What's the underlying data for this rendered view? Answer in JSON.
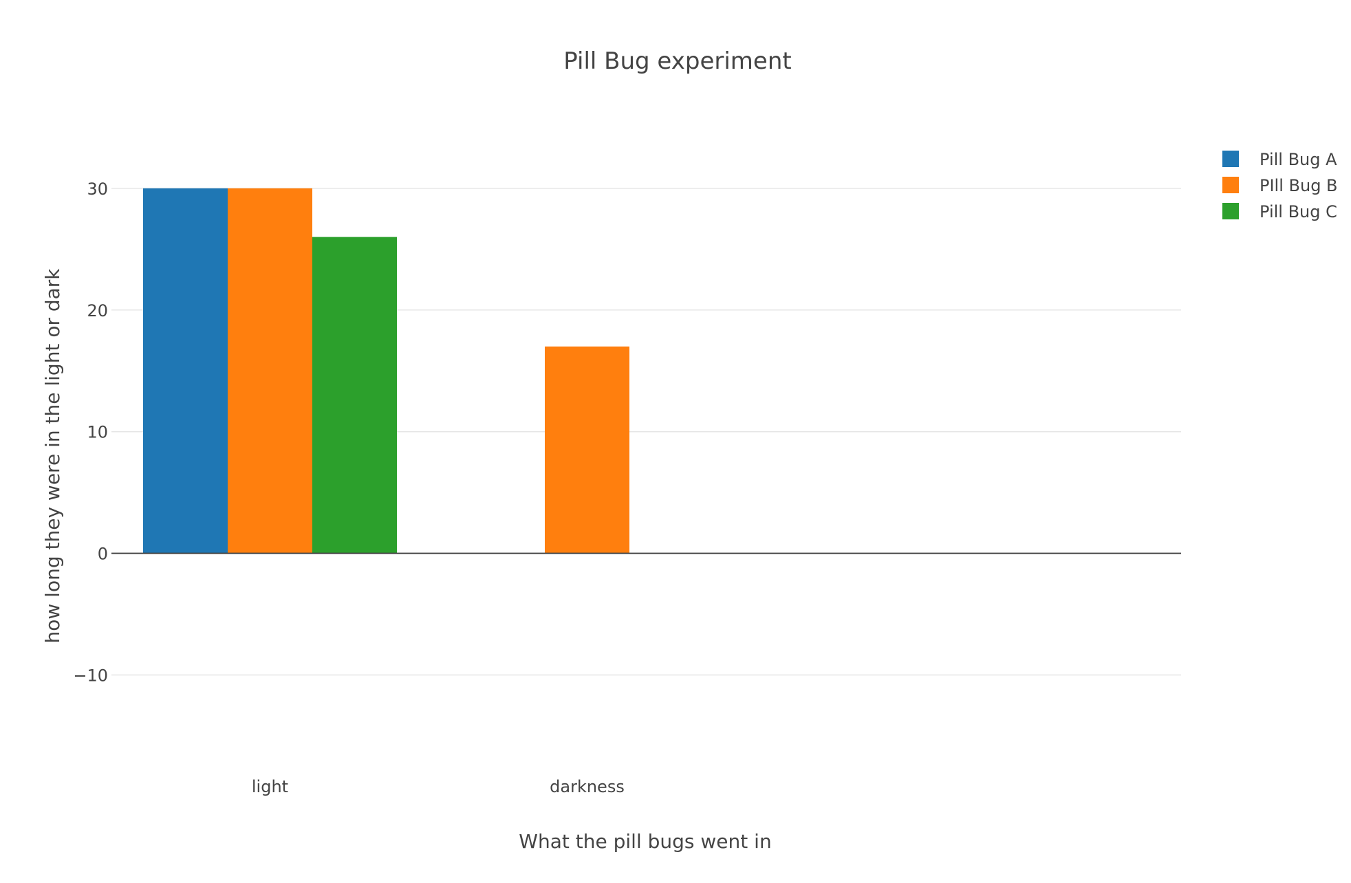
{
  "chart_data": {
    "type": "bar",
    "title": "Pill Bug experiment",
    "xlabel": "What the pill bugs went in",
    "ylabel": "how long they were in the light or dark",
    "categories": [
      "light",
      "darkness"
    ],
    "series": [
      {
        "name": "Pill Bug A",
        "color": "#1f77b4",
        "values": [
          30,
          0
        ]
      },
      {
        "name": "PIll Bug B",
        "color": "#ff7f0e",
        "values": [
          30,
          17
        ]
      },
      {
        "name": "Pill Bug C",
        "color": "#2ca02c",
        "values": [
          26,
          0
        ]
      }
    ],
    "ylim": [
      -15,
      37
    ],
    "yticks": [
      -10,
      0,
      10,
      20,
      30
    ],
    "grid": true,
    "legend_position": "top-right"
  }
}
